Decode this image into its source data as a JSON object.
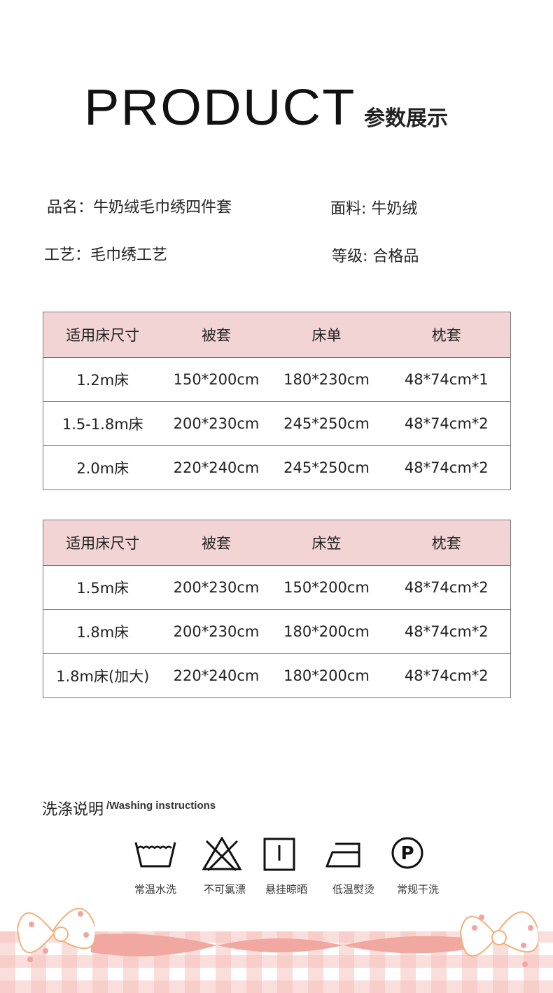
{
  "header": {
    "title_en": "PRODUCT",
    "title_cn": "参数展示"
  },
  "info": {
    "name": "品名：牛奶绒毛巾绣四件套",
    "fabric": "面料: 牛奶绒",
    "craft": "工艺：毛巾绣工艺",
    "grade": "等级: 合格品"
  },
  "table1": {
    "headers": [
      "适用床尺寸",
      "被套",
      "床单",
      "枕套"
    ],
    "rows": [
      [
        "1.2m床",
        "150*200cm",
        "180*230cm",
        "48*74cm*1"
      ],
      [
        "1.5-1.8m床",
        "200*230cm",
        "245*250cm",
        "48*74cm*2"
      ],
      [
        "2.0m床",
        "220*240cm",
        "245*250cm",
        "48*74cm*2"
      ]
    ]
  },
  "table2": {
    "headers": [
      "适用床尺寸",
      "被套",
      "床笠",
      "枕套"
    ],
    "rows": [
      [
        "1.5m床",
        "200*230cm",
        "150*200cm",
        "48*74cm*2"
      ],
      [
        "1.8m床",
        "200*230cm",
        "180*200cm",
        "48*74cm*2"
      ],
      [
        "1.8m床(加大)",
        "220*240cm",
        "180*200cm",
        "48*74cm*2"
      ]
    ]
  },
  "washing": {
    "title_cn": "洗涤说明",
    "title_en": "/Washing instructions",
    "items": [
      {
        "icon": "wash-tub-icon",
        "label": "常温水洗"
      },
      {
        "icon": "no-bleach-icon",
        "label": "不可氯漂"
      },
      {
        "icon": "hang-dry-icon",
        "label": "悬挂晾晒"
      },
      {
        "icon": "low-iron-icon",
        "label": "低温熨烫"
      },
      {
        "icon": "dry-clean-p-icon",
        "label": "常规干洗"
      }
    ]
  },
  "colors": {
    "header_bg": "#f2d4d4",
    "ribbon": "#f0a8a0",
    "check": "#f5beb9"
  }
}
